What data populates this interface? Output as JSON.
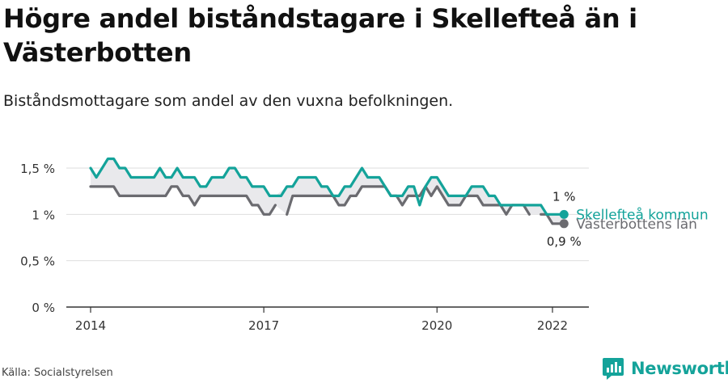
{
  "title": "Högre andel biståndstagare i Skellefteå än i Västerbotten",
  "subtitle": "Biståndsmottagare som andel av den vuxna befolkningen.",
  "source": "Källa: Socialstyrelsen",
  "brand": "Newsworthy",
  "brand_icon": "newsworthy-logo-icon",
  "colors": {
    "skelleftea": "#14a39a",
    "vasterbotten": "#6b6b70",
    "fill": "#e9e9ec",
    "grid": "#dedede",
    "axis": "#333333"
  },
  "chart_data": {
    "type": "line",
    "x_unit": "year",
    "xlim": [
      2014,
      2022.4
    ],
    "ylim": [
      0,
      1.5
    ],
    "y_ticks": [
      {
        "value": 0,
        "label": "0 %"
      },
      {
        "value": 0.5,
        "label": "0,5 %"
      },
      {
        "value": 1,
        "label": "1 %"
      },
      {
        "value": 1.5,
        "label": "1,5 %"
      }
    ],
    "x_ticks": [
      {
        "value": 2014,
        "label": "2014"
      },
      {
        "value": 2017,
        "label": "2017"
      },
      {
        "value": 2020,
        "label": "2020"
      },
      {
        "value": 2022,
        "label": "2022"
      }
    ],
    "grid": true,
    "area_between_series": true,
    "series": [
      {
        "name": "Skellefteå kommun",
        "color": "#14a39a",
        "end_label": "1 %",
        "x": [
          2014.0,
          2014.1,
          2014.2,
          2014.3,
          2014.4,
          2014.5,
          2014.6,
          2014.7,
          2014.8,
          2014.9,
          2015.0,
          2015.1,
          2015.2,
          2015.3,
          2015.4,
          2015.5,
          2015.6,
          2015.7,
          2015.8,
          2015.9,
          2016.0,
          2016.1,
          2016.2,
          2016.3,
          2016.4,
          2016.5,
          2016.6,
          2016.7,
          2016.8,
          2016.9,
          2017.0,
          2017.1,
          2017.2,
          2017.3,
          2017.4,
          2017.5,
          2017.6,
          2017.7,
          2017.8,
          2017.9,
          2018.0,
          2018.1,
          2018.2,
          2018.3,
          2018.4,
          2018.5,
          2018.6,
          2018.7,
          2018.8,
          2018.9,
          2019.0,
          2019.1,
          2019.2,
          2019.3,
          2019.4,
          2019.5,
          2019.6,
          2019.7,
          2019.8,
          2019.9,
          2020.0,
          2020.1,
          2020.2,
          2020.3,
          2020.4,
          2020.5,
          2020.6,
          2020.7,
          2020.8,
          2020.9,
          2021.0,
          2021.1,
          2021.2,
          2021.3,
          2021.4,
          2021.5,
          2021.6,
          2021.7,
          2021.8,
          2021.9,
          2022.0,
          2022.1,
          2022.2
        ],
        "y": [
          1.5,
          1.4,
          1.5,
          1.6,
          1.6,
          1.5,
          1.5,
          1.4,
          1.4,
          1.4,
          1.4,
          1.4,
          1.5,
          1.4,
          1.4,
          1.5,
          1.4,
          1.4,
          1.4,
          1.3,
          1.3,
          1.4,
          1.4,
          1.4,
          1.5,
          1.5,
          1.4,
          1.4,
          1.3,
          1.3,
          1.3,
          1.2,
          1.2,
          1.2,
          1.3,
          1.3,
          1.4,
          1.4,
          1.4,
          1.4,
          1.3,
          1.3,
          1.2,
          1.2,
          1.3,
          1.3,
          1.4,
          1.5,
          1.4,
          1.4,
          1.4,
          1.3,
          1.2,
          1.2,
          1.2,
          1.3,
          1.3,
          1.1,
          1.3,
          1.4,
          1.4,
          1.3,
          1.2,
          1.2,
          1.2,
          1.2,
          1.3,
          1.3,
          1.3,
          1.2,
          1.2,
          1.1,
          1.1,
          1.1,
          1.1,
          1.1,
          1.1,
          1.1,
          1.1,
          1.0,
          1.0,
          1.0,
          1.0
        ]
      },
      {
        "name": "Västerbottens län",
        "color": "#6b6b70",
        "end_label": "0,9 %",
        "x": [
          2014.0,
          2014.1,
          2014.2,
          2014.3,
          2014.4,
          2014.5,
          2014.6,
          2014.7,
          2014.8,
          2014.9,
          2015.0,
          2015.1,
          2015.2,
          2015.3,
          2015.4,
          2015.5,
          2015.6,
          2015.7,
          2015.8,
          2015.9,
          2016.0,
          2016.1,
          2016.2,
          2016.3,
          2016.4,
          2016.5,
          2016.6,
          2016.7,
          2016.8,
          2016.9,
          2017.0,
          2017.1,
          2017.2,
          2017.3,
          2017.4,
          2017.5,
          2017.6,
          2017.7,
          2017.8,
          2017.9,
          2018.0,
          2018.1,
          2018.2,
          2018.3,
          2018.4,
          2018.5,
          2018.6,
          2018.7,
          2018.8,
          2018.9,
          2019.0,
          2019.1,
          2019.2,
          2019.3,
          2019.4,
          2019.5,
          2019.6,
          2019.7,
          2019.8,
          2019.9,
          2020.0,
          2020.1,
          2020.2,
          2020.3,
          2020.4,
          2020.5,
          2020.6,
          2020.7,
          2020.8,
          2020.9,
          2021.0,
          2021.1,
          2021.2,
          2021.3,
          2021.4,
          2021.5,
          2021.6,
          2021.7,
          2021.8,
          2021.9,
          2022.0,
          2022.1,
          2022.2
        ],
        "y": [
          1.3,
          1.3,
          1.3,
          1.3,
          1.3,
          1.2,
          1.2,
          1.2,
          1.2,
          1.2,
          1.2,
          1.2,
          1.2,
          1.2,
          1.3,
          1.3,
          1.2,
          1.2,
          1.1,
          1.2,
          1.2,
          1.2,
          1.2,
          1.2,
          1.2,
          1.2,
          1.2,
          1.2,
          1.1,
          1.1,
          1.0,
          1.0,
          1.1,
          null,
          1.0,
          1.2,
          1.2,
          1.2,
          1.2,
          1.2,
          1.2,
          1.2,
          1.2,
          1.1,
          1.1,
          1.2,
          1.2,
          1.3,
          1.3,
          1.3,
          1.3,
          1.3,
          1.2,
          1.2,
          1.1,
          1.2,
          1.2,
          1.2,
          1.3,
          1.2,
          1.3,
          1.2,
          1.1,
          1.1,
          1.1,
          1.2,
          1.2,
          1.2,
          1.1,
          1.1,
          1.1,
          1.1,
          1.0,
          1.1,
          1.1,
          1.1,
          1.0,
          null,
          1.0,
          1.0,
          0.9,
          0.9,
          0.9
        ]
      }
    ]
  }
}
